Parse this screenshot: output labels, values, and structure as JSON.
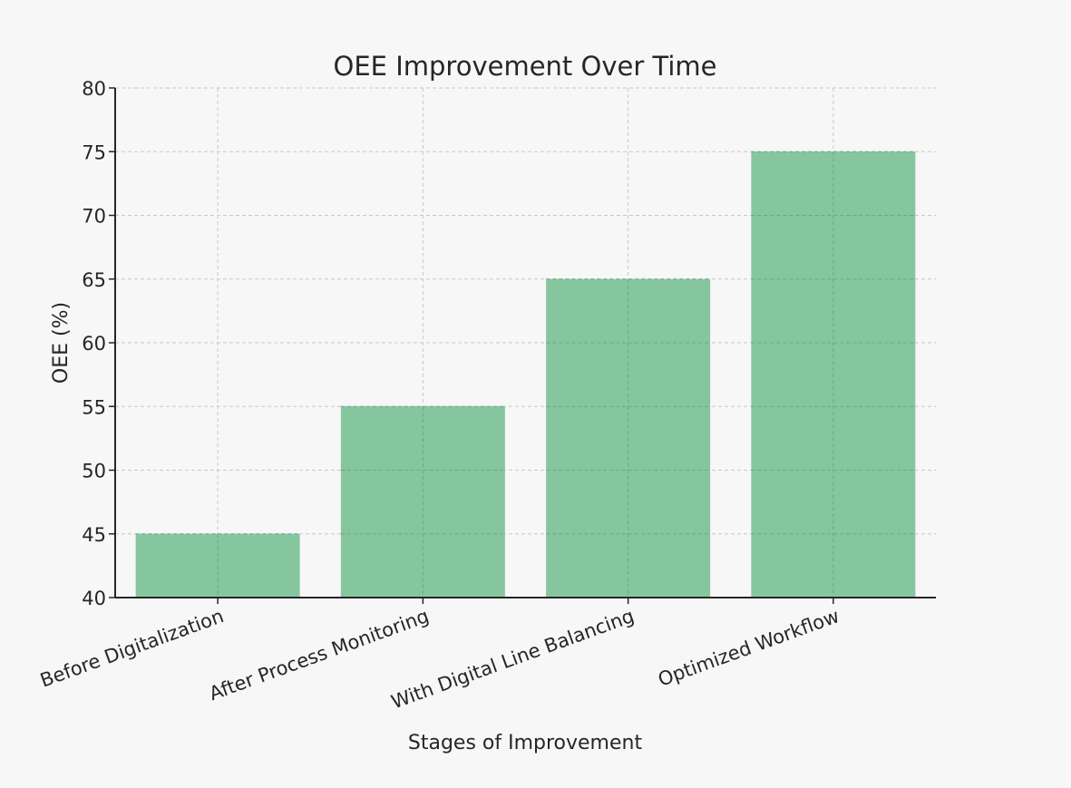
{
  "chart_data": {
    "type": "bar",
    "title": "OEE Improvement Over Time",
    "xlabel": "Stages of Improvement",
    "ylabel": "OEE (%)",
    "categories": [
      "Before Digitalization",
      "After Process Monitoring",
      "With Digital Line Balancing",
      "Optimized Workflow"
    ],
    "values": [
      45,
      55,
      65,
      75
    ],
    "ylim": [
      40,
      80
    ],
    "yticks": [
      40,
      45,
      50,
      55,
      60,
      65,
      70,
      75,
      80
    ],
    "bar_color": "#7fc39a",
    "grid": true,
    "grid_style": "dashed",
    "legend": false
  }
}
